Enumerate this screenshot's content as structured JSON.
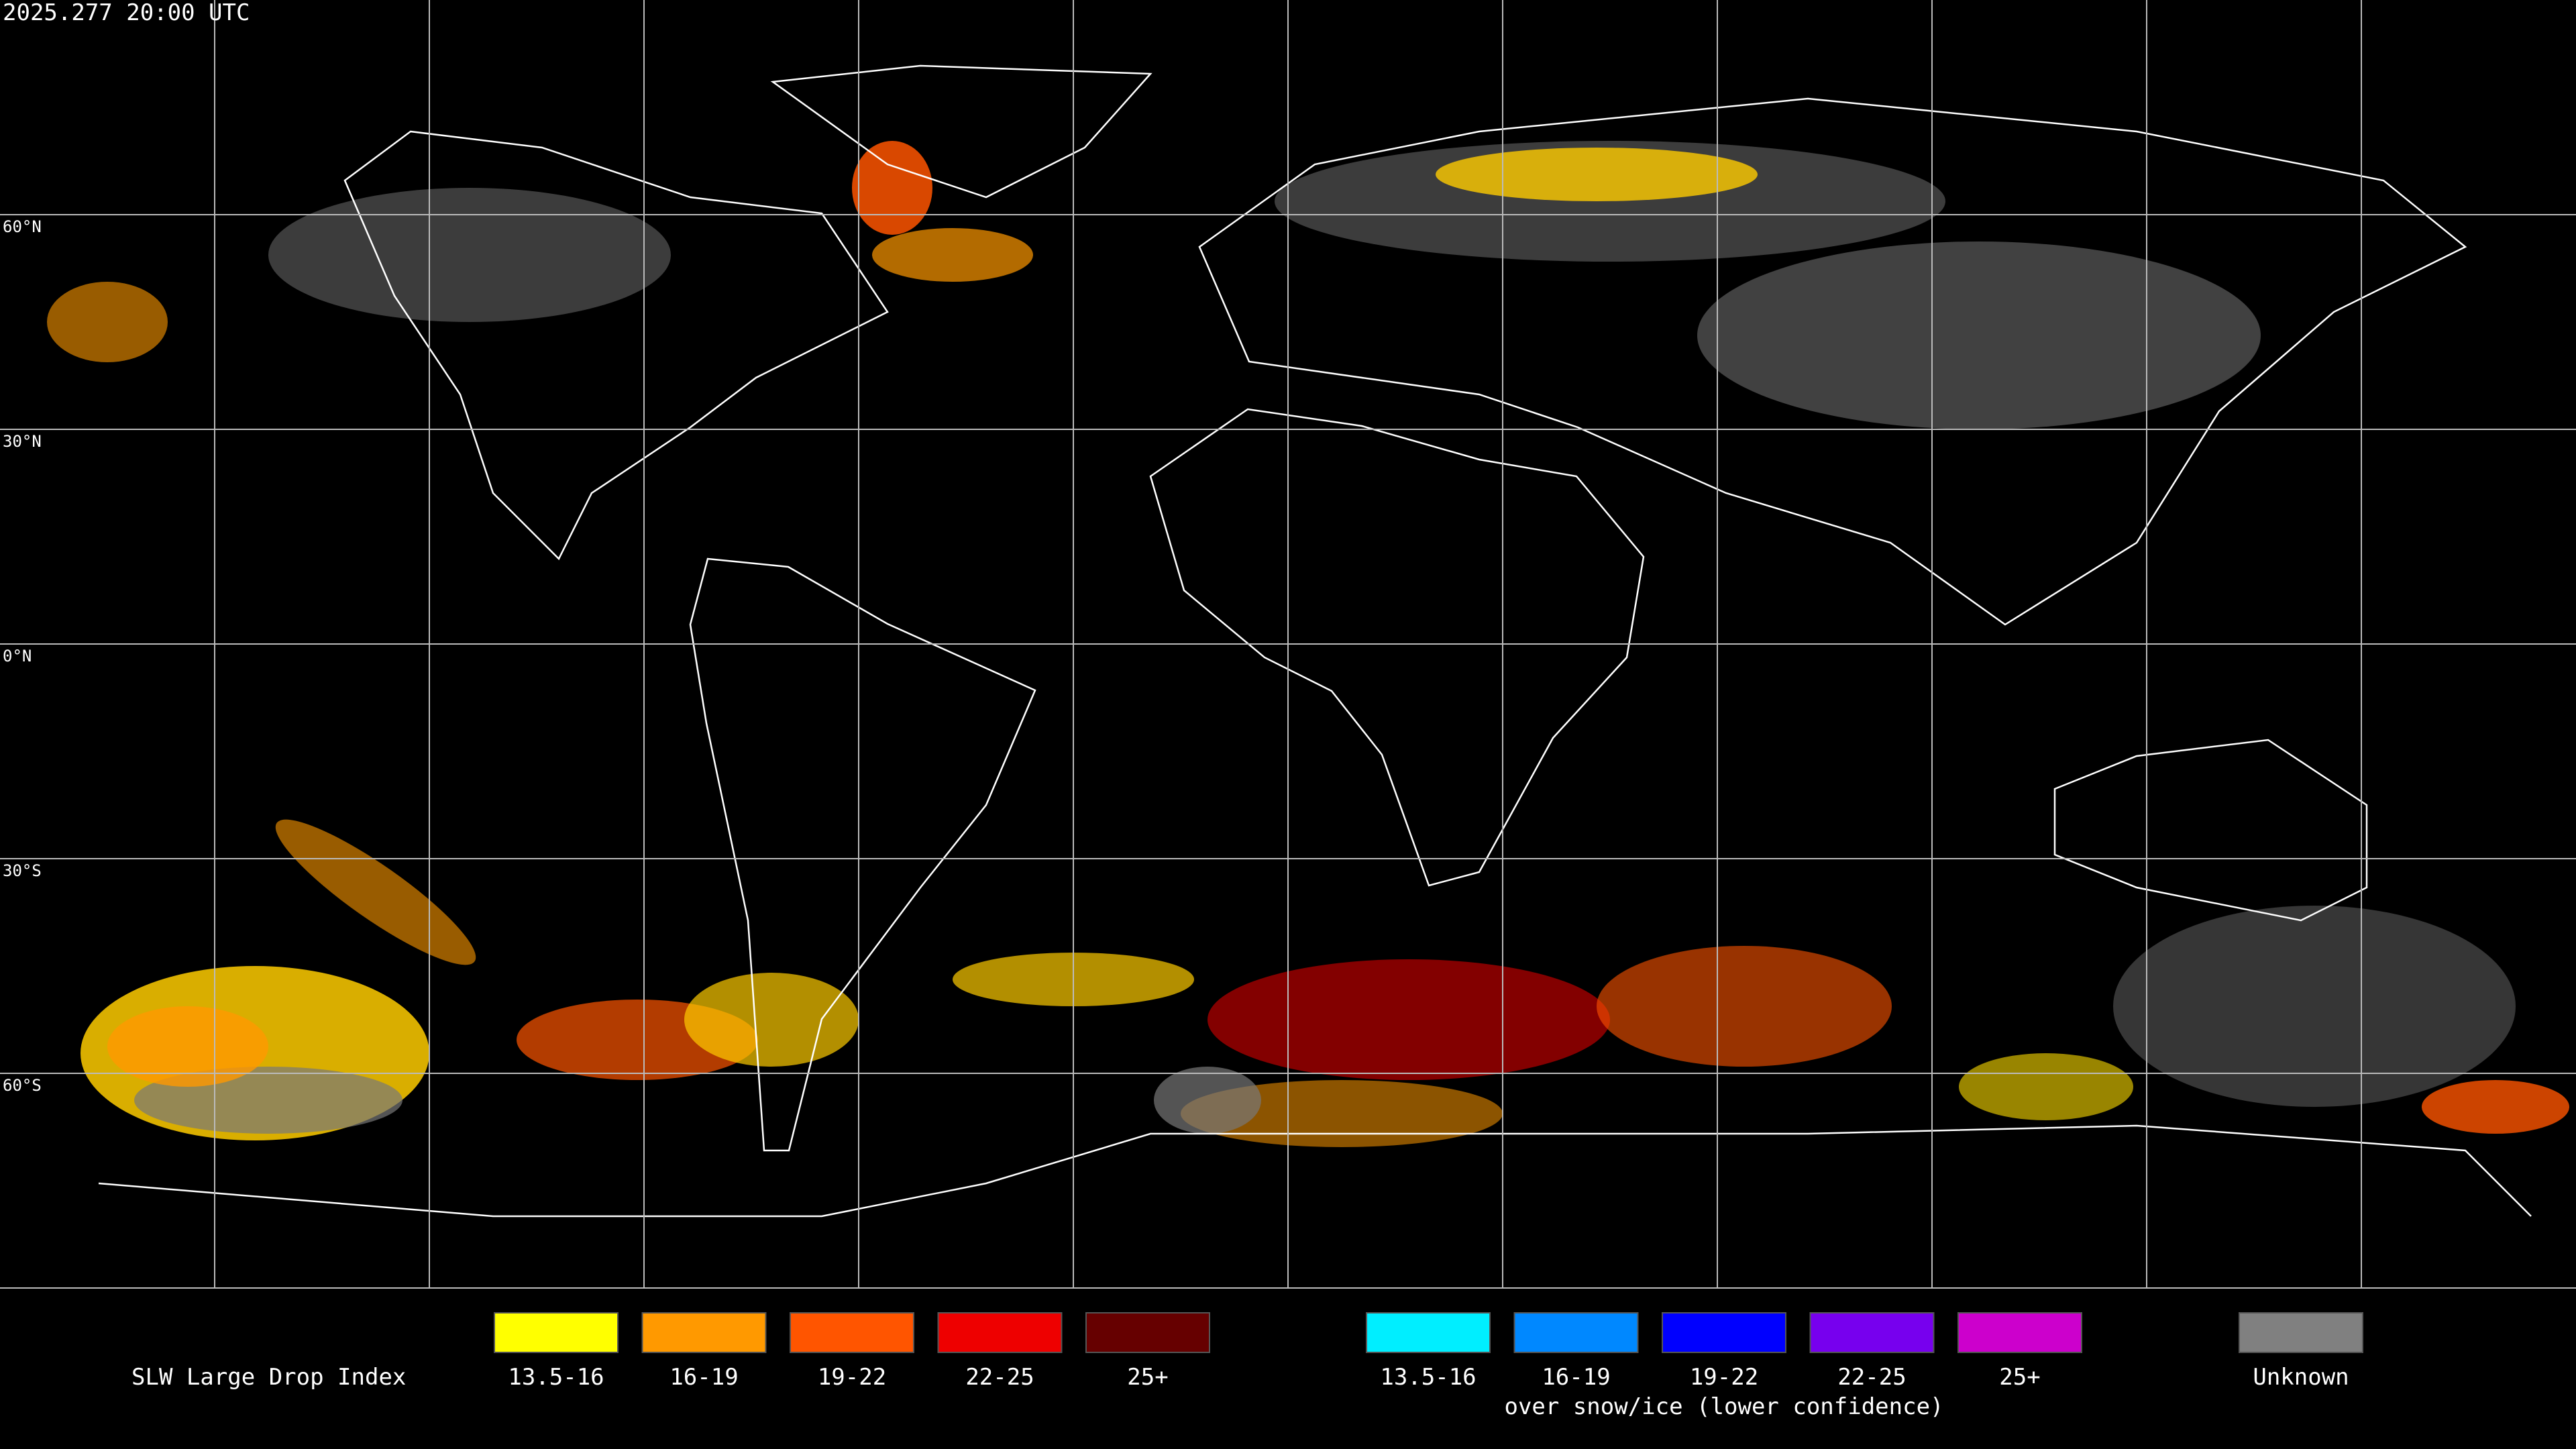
{
  "timestamp": "2025.277 20:00 UTC",
  "map": {
    "lat_labels": [
      "60°N",
      "30°N",
      "0°N",
      "30°S",
      "60°S"
    ]
  },
  "legend": {
    "title": "SLW Large Drop Index",
    "groups": [
      {
        "items": [
          {
            "label": "13.5-16",
            "color": "#ffff00"
          },
          {
            "label": "16-19",
            "color": "#ff9900"
          },
          {
            "label": "19-22",
            "color": "#ff5500"
          },
          {
            "label": "22-25",
            "color": "#ee0000"
          },
          {
            "label": "25+",
            "color": "#660000"
          }
        ]
      },
      {
        "items": [
          {
            "label": "13.5-16",
            "color": "#00eeff"
          },
          {
            "label": "16-19",
            "color": "#0088ff"
          },
          {
            "label": "19-22",
            "color": "#0000ff"
          },
          {
            "label": "22-25",
            "color": "#7700ee"
          },
          {
            "label": "25+",
            "color": "#cc00cc"
          }
        ],
        "note": "over snow/ice (lower confidence)"
      }
    ],
    "unknown": {
      "label": "Unknown",
      "color": "#808080"
    }
  }
}
